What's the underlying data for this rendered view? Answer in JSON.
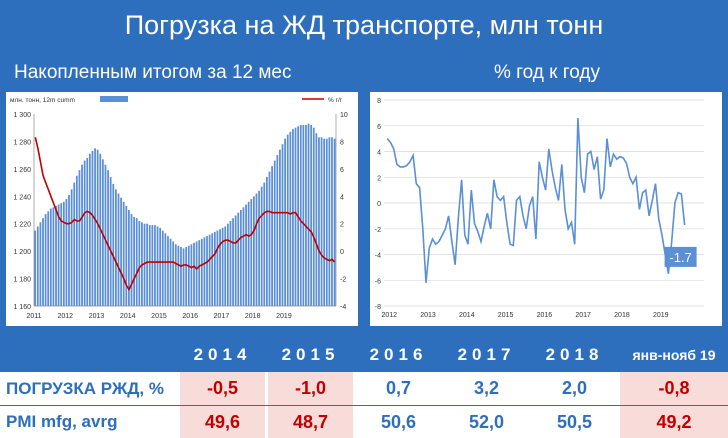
{
  "title": "Погрузка на ЖД транспорте, млн тонн",
  "left_subtitle": "Накопленным итогом за 12 мес",
  "right_subtitle": "% год к году",
  "colors": {
    "background": "#2e6fbd",
    "bar": "#5b8fd6",
    "line_red": "#c00000",
    "line_blue": "#5b8fd6",
    "negative": "#c00000",
    "highlight": "#f8dcd9"
  },
  "chart_data": [
    {
      "type": "bar",
      "title": "",
      "legend": {
        "bar_label": "млн. тонн, 12m cumm",
        "line_label": "% г/г",
        "placement": "top"
      },
      "x_ticks": [
        "2011",
        "2012",
        "2013",
        "2014",
        "2015",
        "2016",
        "2017",
        "2018",
        "2019"
      ],
      "y_left": {
        "ticks": [
          "1 160",
          "1 180",
          "1 200",
          "1 220",
          "1 240",
          "1 260",
          "1 280",
          "1 300"
        ],
        "lim": [
          1160,
          1300
        ]
      },
      "y_right": {
        "ticks": [
          "-4",
          "-2",
          "0",
          "2",
          "4",
          "6",
          "8",
          "10"
        ],
        "lim": [
          -4,
          10
        ]
      },
      "grid": false,
      "bars": [
        1215,
        1218,
        1221,
        1224,
        1227,
        1229,
        1231,
        1232,
        1233,
        1234,
        1235,
        1236,
        1238,
        1241,
        1245,
        1250,
        1255,
        1259,
        1263,
        1266,
        1268,
        1271,
        1273,
        1275,
        1274,
        1271,
        1267,
        1263,
        1259,
        1254,
        1249,
        1245,
        1242,
        1239,
        1236,
        1233,
        1230,
        1227,
        1225,
        1224,
        1222,
        1221,
        1220,
        1220,
        1219,
        1219,
        1219,
        1218,
        1217,
        1215,
        1213,
        1211,
        1209,
        1207,
        1205,
        1204,
        1203,
        1202,
        1203,
        1204,
        1205,
        1206,
        1207,
        1208,
        1209,
        1210,
        1211,
        1212,
        1213,
        1214,
        1215,
        1216,
        1217,
        1218,
        1220,
        1222,
        1224,
        1226,
        1228,
        1230,
        1232,
        1234,
        1236,
        1238,
        1240,
        1242,
        1244,
        1247,
        1250,
        1254,
        1258,
        1262,
        1266,
        1270,
        1274,
        1278,
        1282,
        1285,
        1287,
        1289,
        1290,
        1291,
        1292,
        1292,
        1292,
        1293,
        1292,
        1290,
        1286,
        1283,
        1283,
        1282,
        1282,
        1283,
        1283,
        1282
      ],
      "line": [
        8.3,
        7.5,
        6.5,
        5.5,
        5.0,
        4.5,
        4.0,
        3.5,
        3.0,
        2.5,
        2.2,
        2.1,
        2.0,
        2.0,
        2.1,
        2.3,
        2.2,
        2.2,
        2.5,
        2.8,
        2.9,
        2.8,
        2.6,
        2.3,
        2.0,
        1.6,
        1.2,
        0.8,
        0.4,
        0.0,
        -0.4,
        -0.8,
        -1.2,
        -1.6,
        -2.0,
        -2.5,
        -2.8,
        -2.4,
        -2.0,
        -1.6,
        -1.2,
        -1.0,
        -0.9,
        -0.8,
        -0.8,
        -0.8,
        -0.8,
        -0.8,
        -0.8,
        -0.8,
        -0.8,
        -0.8,
        -0.8,
        -0.8,
        -0.9,
        -1.0,
        -1.1,
        -1.0,
        -1.0,
        -1.1,
        -1.2,
        -1.1,
        -1.3,
        -1.1,
        -1.0,
        -0.9,
        -0.8,
        -0.6,
        -0.4,
        -0.2,
        0.2,
        0.5,
        0.7,
        0.8,
        0.8,
        0.7,
        0.6,
        0.6,
        0.8,
        1.0,
        1.1,
        1.2,
        1.1,
        1.2,
        1.5,
        2.0,
        2.4,
        2.6,
        2.8,
        2.9,
        2.9,
        2.8,
        2.8,
        2.8,
        2.8,
        2.8,
        2.8,
        2.8,
        2.7,
        2.8,
        2.8,
        2.5,
        2.2,
        2.0,
        1.8,
        1.6,
        1.4,
        1.0,
        0.5,
        0.0,
        -0.3,
        -0.5,
        -0.6,
        -0.7,
        -0.6,
        -0.8
      ]
    },
    {
      "type": "line",
      "title": "",
      "x_ticks": [
        "2012",
        "2013",
        "2014",
        "2015",
        "2016",
        "2017",
        "2018",
        "2019"
      ],
      "y": {
        "ticks": [
          "-8",
          "-6",
          "-4",
          "-2",
          "0",
          "2",
          "4",
          "6",
          "8"
        ],
        "lim": [
          -8,
          8
        ]
      },
      "grid": true,
      "annotation": "-1.7",
      "values": [
        5.0,
        4.7,
        4.2,
        3.0,
        2.8,
        2.8,
        2.9,
        3.2,
        3.7,
        1.5,
        1.2,
        -2.0,
        -6.2,
        -3.5,
        -2.8,
        -3.2,
        -3.0,
        -2.5,
        -2.0,
        -1.0,
        -3.0,
        -4.8,
        -1.2,
        1.8,
        -2.5,
        -3.2,
        1.0,
        -1.6,
        -2.2,
        -3.0,
        -1.8,
        -0.8,
        -2.0,
        1.8,
        0.5,
        0.2,
        0.5,
        -1.5,
        -3.2,
        -3.3,
        0.2,
        0.5,
        -1.0,
        -2.0,
        -0.2,
        0.5,
        -2.8,
        3.2,
        2.0,
        1.0,
        4.2,
        2.5,
        1.2,
        0.2,
        3.0,
        -0.5,
        -2.0,
        -1.5,
        -3.2,
        6.6,
        2.0,
        0.8,
        3.8,
        4.0,
        2.6,
        3.6,
        0.3,
        1.0,
        5.0,
        2.8,
        3.8,
        3.4,
        3.6,
        3.5,
        3.1,
        2.0,
        1.5,
        2.0,
        -0.5,
        0.8,
        1.0,
        -1.0,
        0.2,
        1.5,
        -1.2,
        -2.5,
        -4.0,
        -5.5,
        -3.0,
        0.0,
        0.8,
        0.7,
        -1.7
      ]
    }
  ],
  "table": {
    "headers": [
      "2014",
      "2015",
      "2016",
      "2017",
      "2018",
      "янв-нояб 19"
    ],
    "rows": [
      {
        "label": "ПОГРУЗКА РЖД, %",
        "values": [
          "-0,5",
          "-1,0",
          "0,7",
          "3,2",
          "2,0",
          "-0,8"
        ],
        "colors": [
          "red",
          "red",
          "blue",
          "blue",
          "blue",
          "red"
        ]
      },
      {
        "label": "PMI mfg, avrg",
        "values": [
          "49,6",
          "48,7",
          "50,6",
          "52,0",
          "50,5",
          "49,2"
        ],
        "colors": [
          "red",
          "red",
          "blue",
          "blue",
          "blue",
          "red"
        ]
      }
    ],
    "highlight_columns": [
      0,
      1,
      5
    ]
  }
}
